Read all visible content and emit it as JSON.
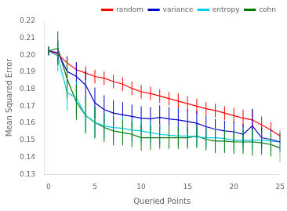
{
  "chart_data": {
    "type": "line",
    "xlabel": "Queried Points",
    "ylabel": "Mean Squared Error",
    "x": [
      0,
      1,
      2,
      3,
      4,
      5,
      6,
      7,
      8,
      9,
      10,
      11,
      12,
      13,
      14,
      15,
      16,
      17,
      18,
      19,
      20,
      21,
      22,
      23,
      24,
      25
    ],
    "series": [
      {
        "name": "random",
        "color": "#ff0000",
        "values": [
          0.2025,
          0.2005,
          0.1955,
          0.1915,
          0.1895,
          0.1875,
          0.1865,
          0.1845,
          0.183,
          0.1805,
          0.1785,
          0.1775,
          0.176,
          0.1745,
          0.173,
          0.1715,
          0.17,
          0.1685,
          0.1675,
          0.166,
          0.1645,
          0.163,
          0.162,
          0.159,
          0.156,
          0.1525
        ],
        "errors": [
          0.0025,
          0.0035,
          0.004,
          0.004,
          0.004,
          0.004,
          0.004,
          0.004,
          0.004,
          0.004,
          0.004,
          0.004,
          0.004,
          0.004,
          0.0045,
          0.0045,
          0.0045,
          0.004,
          0.004,
          0.004,
          0.0045,
          0.005,
          0.006,
          0.005,
          0.0045,
          0.004
        ]
      },
      {
        "name": "variance",
        "color": "#0000cc",
        "values": [
          0.2025,
          0.2015,
          0.1905,
          0.1875,
          0.1825,
          0.172,
          0.168,
          0.166,
          0.165,
          0.164,
          0.163,
          0.1625,
          0.1635,
          0.1625,
          0.162,
          0.161,
          0.16,
          0.158,
          0.1565,
          0.1555,
          0.155,
          0.1535,
          0.1585,
          0.1515,
          0.1505,
          0.149
        ],
        "errors": [
          0.0025,
          0.007,
          0.0085,
          0.0085,
          0.0085,
          0.009,
          0.0085,
          0.0075,
          0.0075,
          0.007,
          0.007,
          0.007,
          0.007,
          0.007,
          0.007,
          0.007,
          0.007,
          0.0065,
          0.006,
          0.006,
          0.006,
          0.006,
          0.01,
          0.006,
          0.006,
          0.006
        ]
      },
      {
        "name": "entropy",
        "color": "#00ccee",
        "values": [
          0.2025,
          0.1995,
          0.178,
          0.175,
          0.1645,
          0.1605,
          0.1585,
          0.1575,
          0.157,
          0.156,
          0.1555,
          0.1545,
          0.1535,
          0.153,
          0.1525,
          0.1525,
          0.152,
          0.1515,
          0.1515,
          0.151,
          0.15,
          0.15,
          0.15,
          0.15,
          0.1495,
          0.149
        ],
        "errors": [
          0.0025,
          0.009,
          0.0105,
          0.0095,
          0.0095,
          0.009,
          0.0075,
          0.0075,
          0.007,
          0.0065,
          0.0065,
          0.006,
          0.006,
          0.0055,
          0.0055,
          0.006,
          0.006,
          0.0055,
          0.0055,
          0.0055,
          0.0055,
          0.0055,
          0.0055,
          0.0055,
          0.0055,
          0.0055
        ]
      },
      {
        "name": "cohn",
        "color": "#007700",
        "values": [
          0.2025,
          0.204,
          0.186,
          0.1725,
          0.1645,
          0.1605,
          0.1575,
          0.1555,
          0.1545,
          0.1535,
          0.1515,
          0.1515,
          0.1515,
          0.1515,
          0.1515,
          0.1515,
          0.1525,
          0.1505,
          0.1495,
          0.1495,
          0.149,
          0.149,
          0.149,
          0.1485,
          0.1475,
          0.1455
        ],
        "errors": [
          0.0025,
          0.01,
          0.0115,
          0.0105,
          0.0105,
          0.0095,
          0.0085,
          0.0085,
          0.0075,
          0.0075,
          0.0075,
          0.007,
          0.0065,
          0.0065,
          0.0065,
          0.0065,
          0.007,
          0.0065,
          0.007,
          0.007,
          0.007,
          0.007,
          0.008,
          0.007,
          0.007,
          0.0085
        ]
      }
    ],
    "xlim": [
      -0.5,
      25
    ],
    "xticks": [
      0,
      5,
      10,
      15,
      20,
      25
    ],
    "ylim": [
      0.13,
      0.22
    ],
    "yticks": [
      0.13,
      0.14,
      0.15,
      0.16,
      0.17,
      0.18,
      0.19,
      {
        "value": 0.2,
        "label": "0.20"
      },
      0.21,
      0.22
    ],
    "legend": "upper right",
    "grid": false
  }
}
